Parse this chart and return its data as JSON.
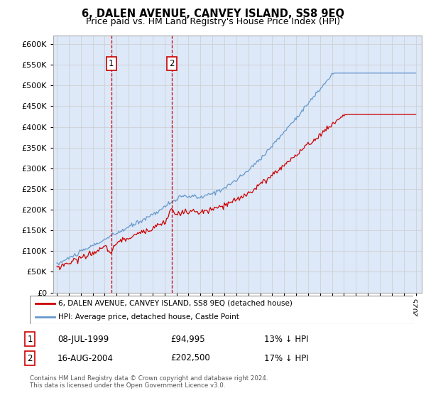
{
  "title": "6, DALEN AVENUE, CANVEY ISLAND, SS8 9EQ",
  "subtitle": "Price paid vs. HM Land Registry's House Price Index (HPI)",
  "legend_label_red": "6, DALEN AVENUE, CANVEY ISLAND, SS8 9EQ (detached house)",
  "legend_label_blue": "HPI: Average price, detached house, Castle Point",
  "footer": "Contains HM Land Registry data © Crown copyright and database right 2024.\nThis data is licensed under the Open Government Licence v3.0.",
  "marker1_date": "08-JUL-1999",
  "marker1_price": 94995,
  "marker1_hpi": "13% ↓ HPI",
  "marker2_date": "16-AUG-2004",
  "marker2_price": 202500,
  "marker2_hpi": "17% ↓ HPI",
  "ylim": [
    0,
    620000
  ],
  "yticks": [
    0,
    50000,
    100000,
    150000,
    200000,
    250000,
    300000,
    350000,
    400000,
    450000,
    500000,
    550000,
    600000
  ],
  "red_color": "#cc0000",
  "blue_color": "#6699cc",
  "grid_color": "#cccccc",
  "bg_color": "#ffffff",
  "plot_bg": "#dde8f8",
  "marker1_x": 1999.54,
  "marker2_x": 2004.62,
  "xlim_left": 1994.7,
  "xlim_right": 2025.5
}
